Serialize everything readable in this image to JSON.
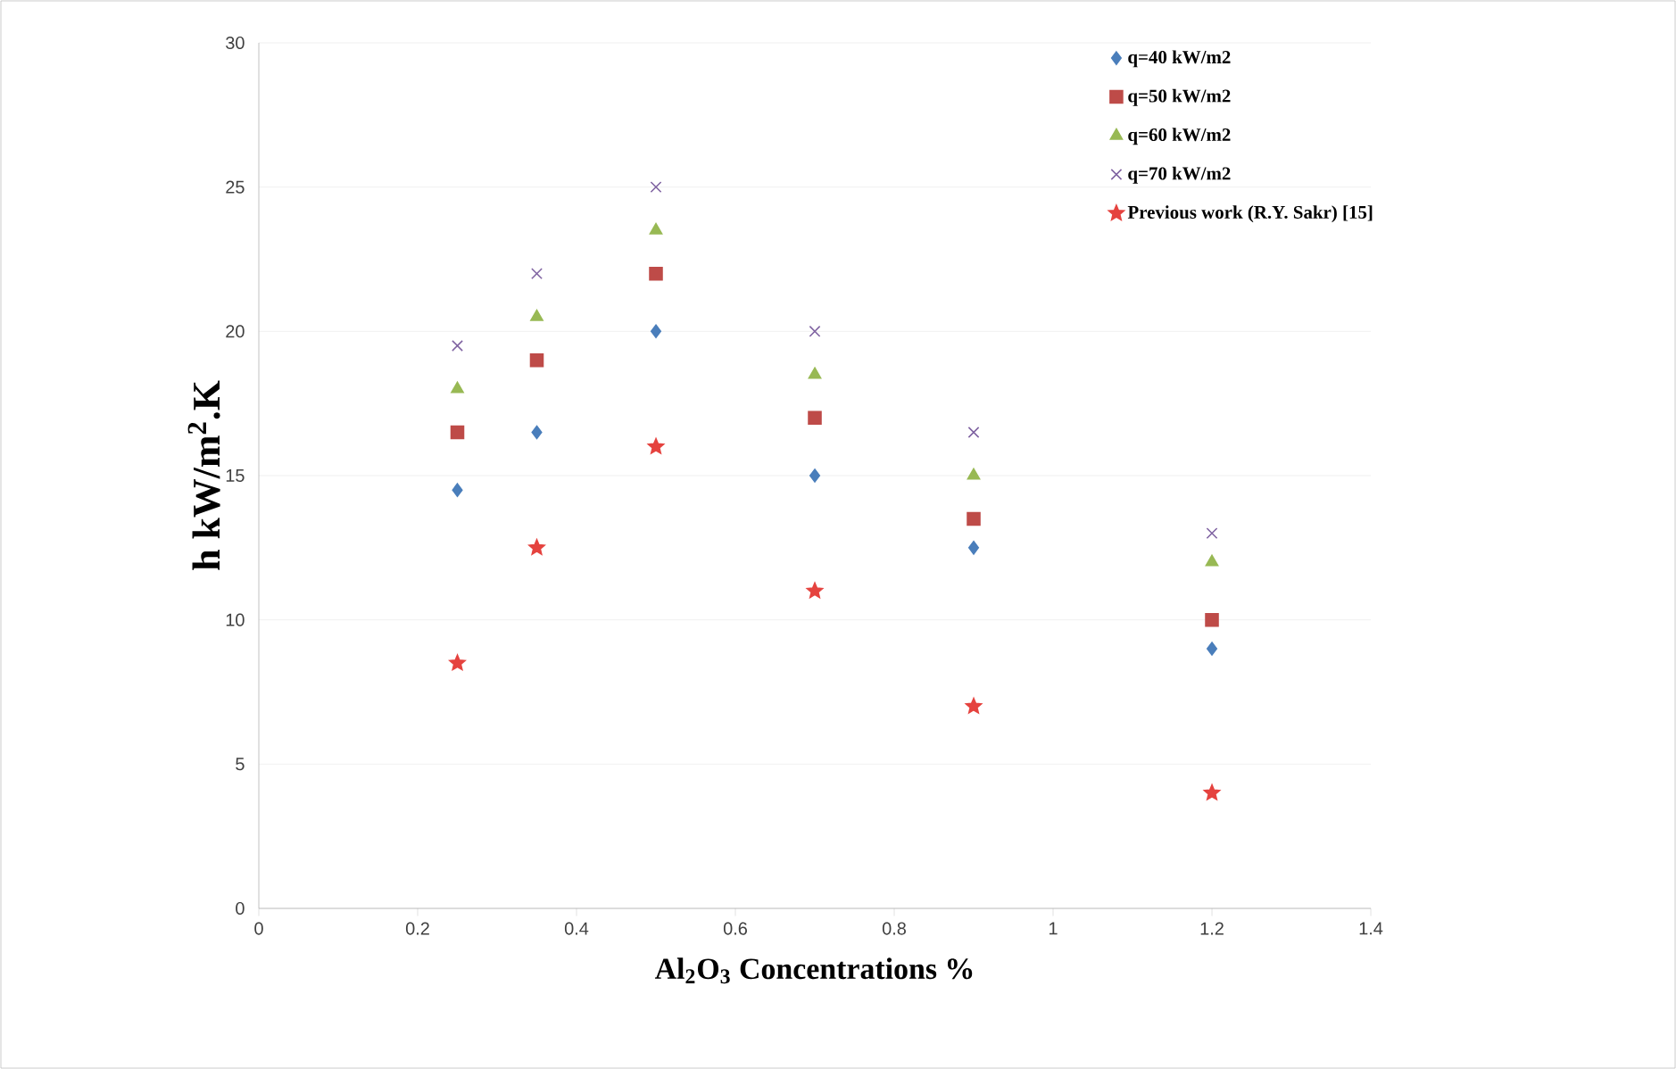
{
  "chart_data": {
    "type": "scatter",
    "xlabel": "Al$_{2}$O$_{3}$ Concentrations %",
    "ylabel": "h  kW/m$^{2}$.K",
    "x": [
      0.25,
      0.35,
      0.5,
      0.7,
      0.9,
      1.2
    ],
    "series": [
      {
        "name": "q=40 kW/m2",
        "color": "#4a7ebb",
        "marker": "diamond",
        "values": [
          14.5,
          16.5,
          20,
          15,
          12.5,
          9
        ]
      },
      {
        "name": "q=50 kW/m2",
        "color": "#be4b48",
        "marker": "square",
        "values": [
          16.5,
          19,
          22,
          17,
          13.5,
          10
        ]
      },
      {
        "name": "q=60 kW/m2",
        "color": "#98b954",
        "marker": "triangle",
        "values": [
          18,
          20.5,
          23.5,
          18.5,
          15,
          12
        ]
      },
      {
        "name": "q=70 kW/m2",
        "color": "#8064a2",
        "marker": "cross",
        "values": [
          19.5,
          22,
          25,
          20,
          16.5,
          13
        ]
      },
      {
        "name": "Previous work (R.Y. Sakr) [15]",
        "color": "#e5433f",
        "marker": "star",
        "values": [
          8.5,
          12.5,
          16,
          11,
          7,
          4
        ]
      }
    ],
    "xlim": [
      0,
      1.4
    ],
    "xticks": [
      0,
      0.2,
      0.4,
      0.6,
      0.8,
      1,
      1.2,
      1.4
    ],
    "ylim": [
      0,
      30
    ],
    "yticks": [
      0,
      5,
      10,
      15,
      20,
      25,
      30
    ],
    "grid": "y",
    "legend": "top right"
  }
}
